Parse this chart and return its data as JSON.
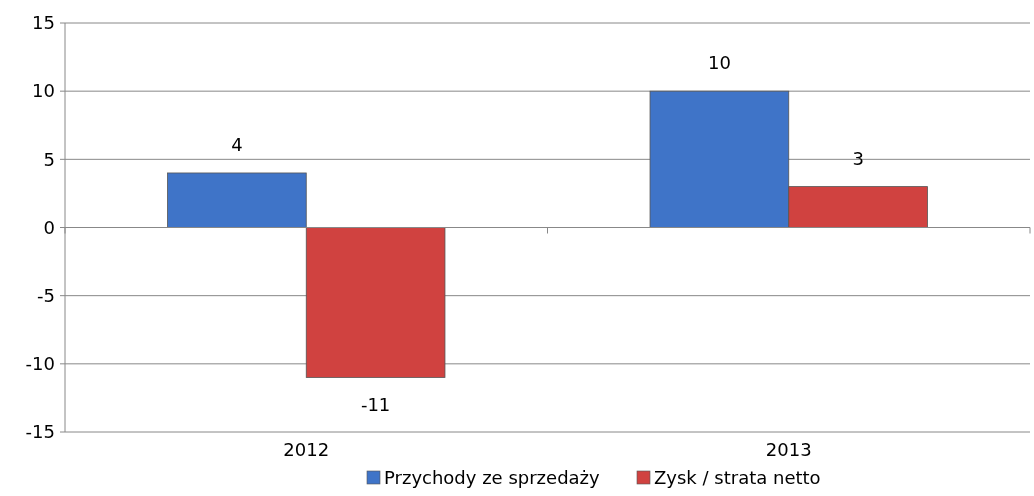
{
  "chart_data": {
    "type": "bar",
    "categories": [
      "2012",
      "2013"
    ],
    "series": [
      {
        "name": "Przychody ze sprzedaży",
        "color": "#3f74c8",
        "values": [
          4,
          10
        ]
      },
      {
        "name": "Zysk / strata netto",
        "color": "#d04240",
        "values": [
          -11,
          3
        ]
      }
    ],
    "ylim": [
      -15,
      15
    ],
    "yticks": [
      -15,
      -10,
      -5,
      0,
      5,
      10,
      15
    ],
    "grid": "y",
    "data_labels": true,
    "legend": "bottom"
  }
}
